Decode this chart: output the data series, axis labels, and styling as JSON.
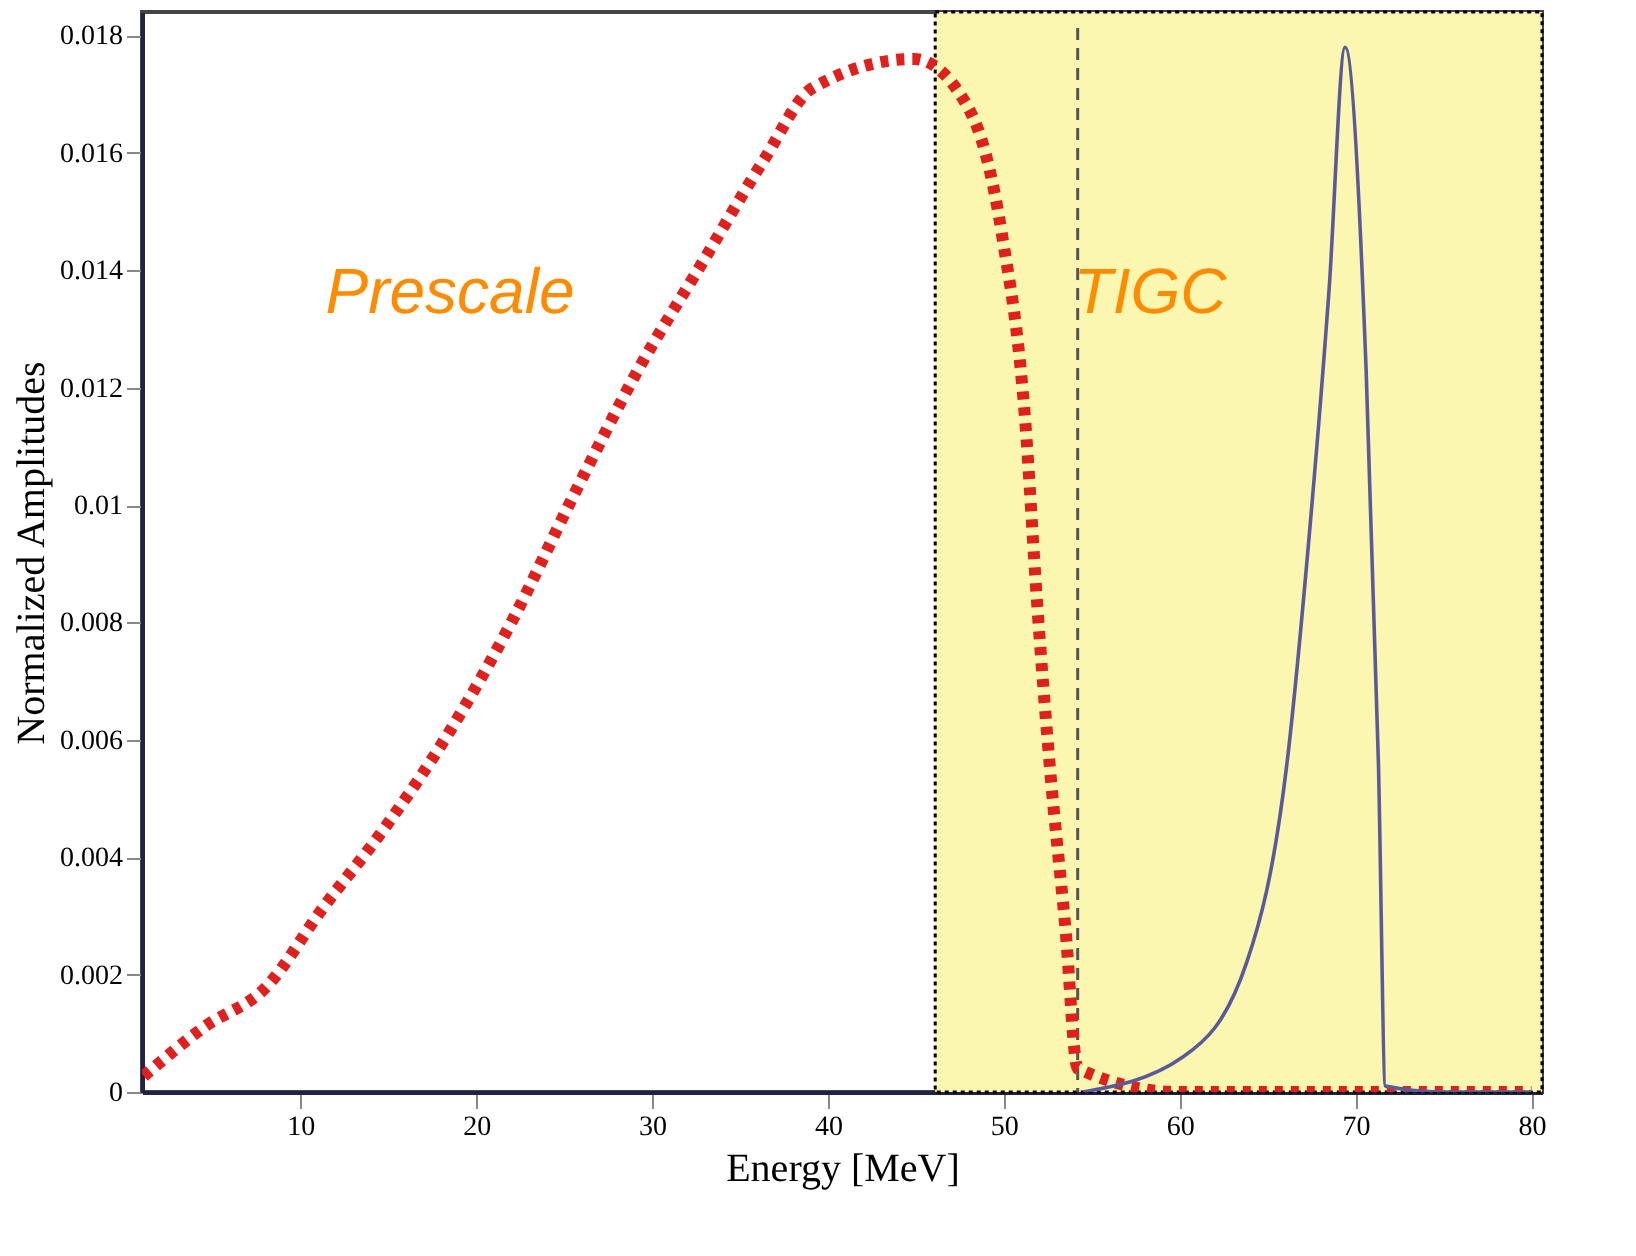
{
  "chart_data": {
    "type": "line",
    "xlabel": "Energy [MeV]",
    "ylabel": "Normalized Amplitudes",
    "xlim": [
      1,
      80.6
    ],
    "ylim": [
      0,
      0.0184
    ],
    "xticks": [
      10,
      20,
      30,
      40,
      50,
      60,
      70,
      80
    ],
    "yticks": [
      0,
      0.002,
      0.004,
      0.006,
      0.008,
      0.01,
      0.012,
      0.014,
      0.016,
      0.018
    ],
    "grid": false,
    "series": [
      {
        "color": "#e0201c",
        "line_style": "dotted",
        "x": [
          1.1,
          4.5,
          8.1,
          11.2,
          14.8,
          18.4,
          22,
          25.6,
          29.2,
          32.8,
          36.4,
          39.1,
          44.9,
          48.1,
          49.9,
          51.2,
          51.9,
          52.6,
          53.5,
          54.2,
          60,
          70,
          80
        ],
        "values": [
          0.00027,
          0.0011,
          0.0018,
          0.0031,
          0.0045,
          0.0061,
          0.008,
          0.0102,
          0.0123,
          0.0141,
          0.0159,
          0.0171,
          0.0176,
          0.0167,
          0.0146,
          0.0115,
          0.0083,
          0.0056,
          0.0028,
          0.0004,
          0,
          0,
          0
        ]
      },
      {
        "color": "#5a5a9a",
        "line_style": "solid",
        "x": [
          54.5,
          60.2,
          63.8,
          66.1,
          67.4,
          68.5,
          69.4,
          70.6,
          71.3,
          71.7,
          75,
          80
        ],
        "values": [
          0,
          0.0006,
          0.0022,
          0.0056,
          0.0096,
          0.0137,
          0.0178,
          0.0123,
          0.0056,
          0.0001,
          0,
          0
        ]
      }
    ],
    "bands": [
      {
        "axis": "x",
        "from": 46.1,
        "to": 80.6,
        "color": "#fbf7b0"
      }
    ],
    "ref_lines": [
      {
        "axis": "x",
        "value": 54.2,
        "line_style": "dashed",
        "color": "#555555"
      }
    ],
    "annotations": [
      "Prescale",
      "TIGC"
    ]
  }
}
